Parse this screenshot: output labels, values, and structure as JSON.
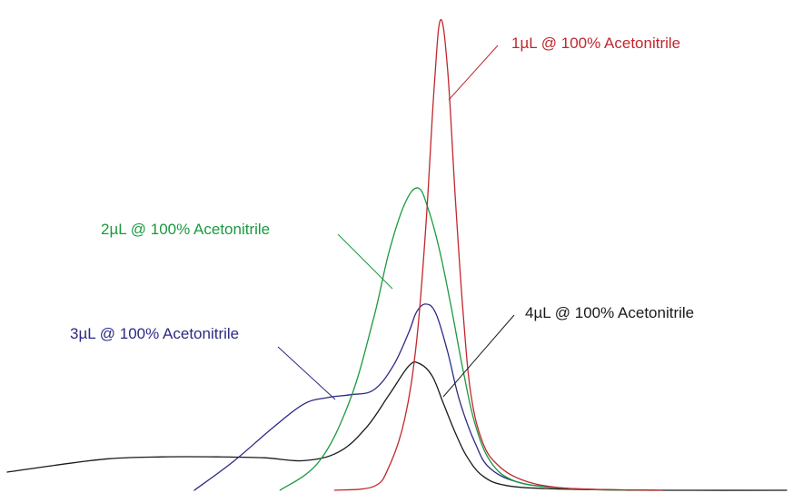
{
  "chart_data": {
    "type": "line",
    "title": "",
    "xlabel": "",
    "ylabel": "",
    "grid": false,
    "legend": "none",
    "series": [
      {
        "name": "1µL @ 100% Acetonitrile",
        "color": "#c0282d",
        "points": [
          [
            0.42,
            0.0
          ],
          [
            0.47,
            0.008
          ],
          [
            0.49,
            0.05
          ],
          [
            0.51,
            0.15
          ],
          [
            0.525,
            0.31
          ],
          [
            0.537,
            0.55
          ],
          [
            0.548,
            0.85
          ],
          [
            0.556,
            0.985
          ],
          [
            0.565,
            0.88
          ],
          [
            0.575,
            0.61
          ],
          [
            0.585,
            0.37
          ],
          [
            0.595,
            0.2
          ],
          [
            0.61,
            0.1
          ],
          [
            0.63,
            0.052
          ],
          [
            0.66,
            0.022
          ],
          [
            0.7,
            0.007
          ],
          [
            0.75,
            0.002
          ],
          [
            0.84,
            0.0
          ]
        ]
      },
      {
        "name": "2µL @ 100% Acetonitrile",
        "color": "#1a9a3f",
        "points": [
          [
            0.35,
            0.0
          ],
          [
            0.4,
            0.06
          ],
          [
            0.44,
            0.19
          ],
          [
            0.47,
            0.36
          ],
          [
            0.49,
            0.5
          ],
          [
            0.51,
            0.6
          ],
          [
            0.527,
            0.633
          ],
          [
            0.54,
            0.59
          ],
          [
            0.555,
            0.5
          ],
          [
            0.57,
            0.38
          ],
          [
            0.585,
            0.25
          ],
          [
            0.6,
            0.14
          ],
          [
            0.62,
            0.06
          ],
          [
            0.65,
            0.02
          ],
          [
            0.7,
            0.006
          ],
          [
            0.76,
            0.001
          ],
          [
            0.83,
            0.0
          ]
        ]
      },
      {
        "name": "3µL @ 100% Acetonitrile",
        "color": "#2c2a83",
        "points": [
          [
            0.24,
            0.0
          ],
          [
            0.29,
            0.06
          ],
          [
            0.34,
            0.13
          ],
          [
            0.38,
            0.18
          ],
          [
            0.41,
            0.194
          ],
          [
            0.44,
            0.2
          ],
          [
            0.47,
            0.21
          ],
          [
            0.495,
            0.26
          ],
          [
            0.515,
            0.33
          ],
          [
            0.525,
            0.373
          ],
          [
            0.537,
            0.39
          ],
          [
            0.55,
            0.37
          ],
          [
            0.565,
            0.29
          ],
          [
            0.58,
            0.19
          ],
          [
            0.6,
            0.1
          ],
          [
            0.62,
            0.045
          ],
          [
            0.66,
            0.015
          ],
          [
            0.72,
            0.004
          ],
          [
            0.8,
            0.0
          ]
        ]
      },
      {
        "name": "4µL @ 100% Acetonitrile",
        "color": "#1a1a1a",
        "points": [
          [
            0.0,
            0.038
          ],
          [
            0.06,
            0.052
          ],
          [
            0.13,
            0.066
          ],
          [
            0.2,
            0.07
          ],
          [
            0.27,
            0.07
          ],
          [
            0.33,
            0.068
          ],
          [
            0.38,
            0.062
          ],
          [
            0.425,
            0.08
          ],
          [
            0.46,
            0.13
          ],
          [
            0.49,
            0.2
          ],
          [
            0.515,
            0.26
          ],
          [
            0.528,
            0.266
          ],
          [
            0.545,
            0.24
          ],
          [
            0.56,
            0.18
          ],
          [
            0.575,
            0.12
          ],
          [
            0.59,
            0.07
          ],
          [
            0.61,
            0.03
          ],
          [
            0.64,
            0.01
          ],
          [
            0.7,
            0.003
          ],
          [
            0.78,
            0.001
          ],
          [
            0.85,
            0.0
          ],
          [
            1.0,
            0.0
          ]
        ]
      }
    ]
  }
}
